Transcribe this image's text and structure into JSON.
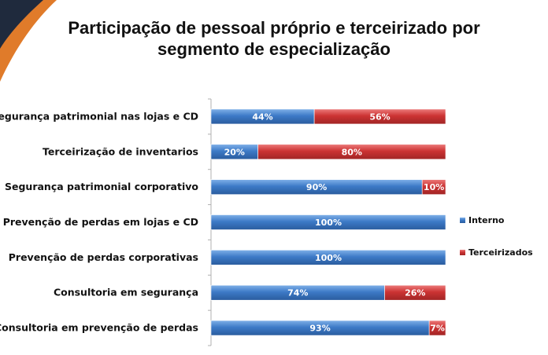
{
  "title": {
    "line1": "Participação de pessoal próprio e terceirizado por",
    "line2": "segmento de especialização"
  },
  "colors": {
    "interno": "#3d7ac7",
    "terceirizados": "#cc3333",
    "corner_dark": "#1f2a3d",
    "corner_orange": "#e07b2a"
  },
  "chart_data": {
    "type": "bar",
    "orientation": "horizontal",
    "stacked": true,
    "categories": [
      "Segurança patrimonial nas lojas e CD",
      "Terceirização de inventarios",
      "Segurança patrimonial corporativo",
      "Prevenção de perdas em lojas e CD",
      "Prevenção de perdas corporativas",
      "Consultoria em segurança",
      "Consultoria em prevenção de perdas"
    ],
    "series": [
      {
        "name": "Interno",
        "values": [
          44,
          20,
          90,
          100,
          100,
          74,
          93
        ]
      },
      {
        "name": "Terceirizados",
        "values": [
          56,
          80,
          10,
          0,
          0,
          26,
          7
        ]
      }
    ],
    "data_labels": [
      [
        "44%",
        "56%"
      ],
      [
        "20%",
        "80%"
      ],
      [
        "90%",
        "10%"
      ],
      [
        "100%",
        ""
      ],
      [
        "100%",
        ""
      ],
      [
        "74%",
        "26%"
      ],
      [
        "93%",
        "7%"
      ]
    ],
    "xlim": [
      0,
      100
    ],
    "legend_position": "right",
    "grid": false
  }
}
